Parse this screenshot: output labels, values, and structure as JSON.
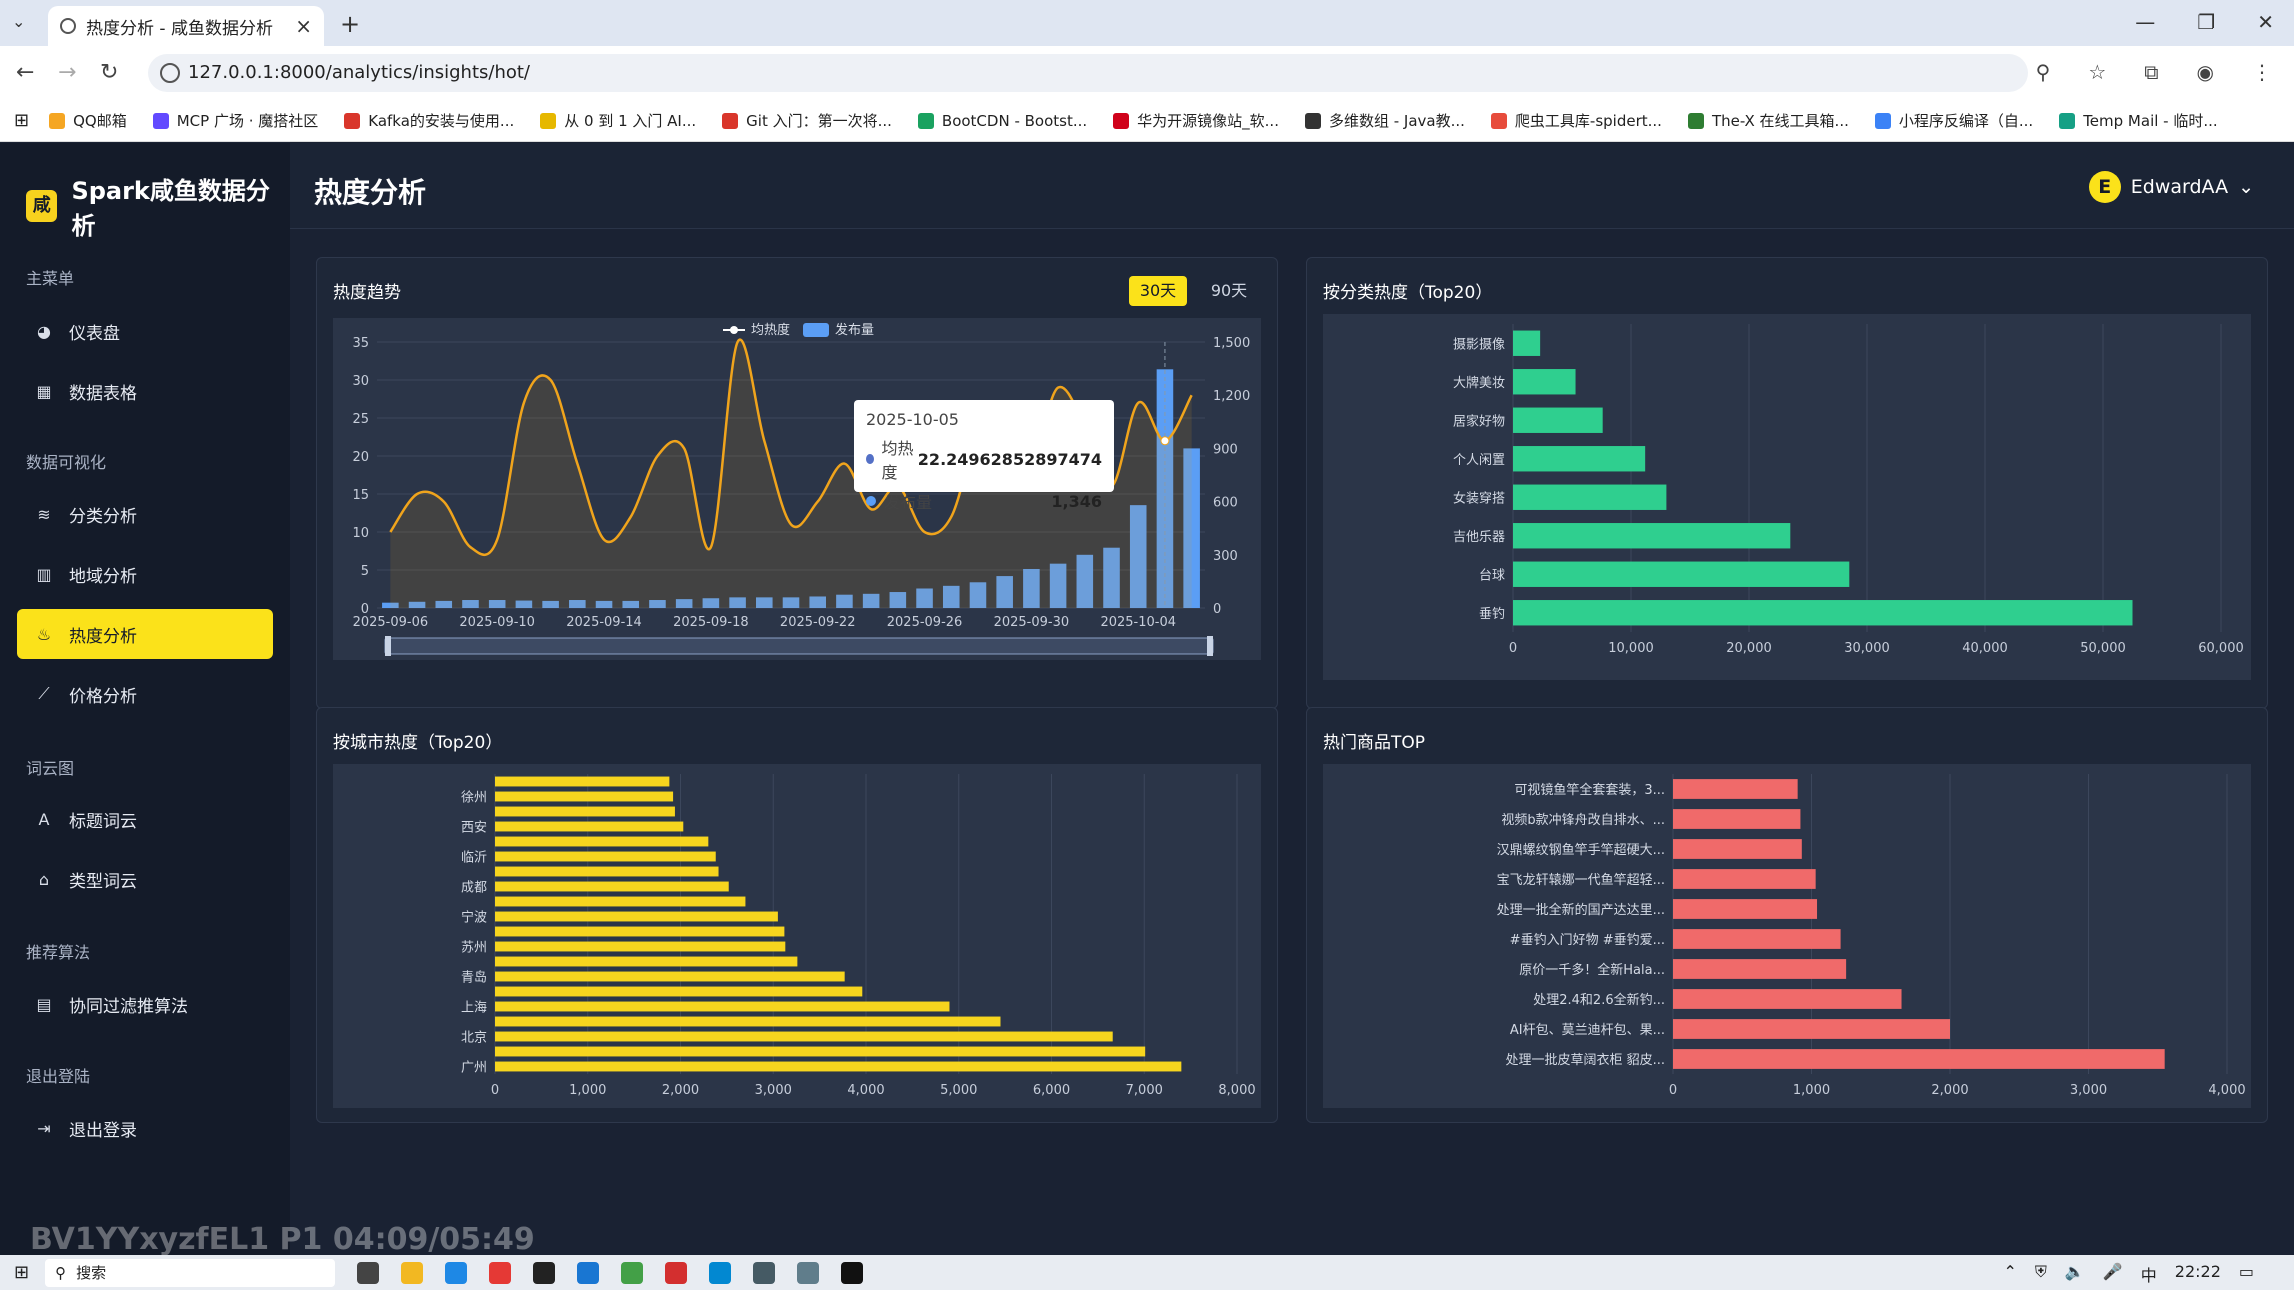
{
  "browser": {
    "tab_title": "热度分析 - 咸鱼数据分析",
    "url": "127.0.0.1:8000/analytics/insights/hot/",
    "bookmarks": [
      {
        "label": "QQ邮箱",
        "color": "#f5a623"
      },
      {
        "label": "MCP 广场 · 魔搭社区",
        "color": "#624aff"
      },
      {
        "label": "Kafka的安装与使用...",
        "color": "#d9362b"
      },
      {
        "label": "从 0 到 1 入门 AI...",
        "color": "#e6b800"
      },
      {
        "label": "Git 入门：第一次将...",
        "color": "#d9362b"
      },
      {
        "label": "BootCDN - Bootst...",
        "color": "#1aa260"
      },
      {
        "label": "华为开源镜像站_软...",
        "color": "#d0021b"
      },
      {
        "label": "多维数组 - Java教...",
        "color": "#333333"
      },
      {
        "label": "爬虫工具库-spidert...",
        "color": "#e74c3c"
      },
      {
        "label": "The-X 在线工具箱...",
        "color": "#2e7d32"
      },
      {
        "label": "小程序反编译（自...",
        "color": "#3b82f6"
      },
      {
        "label": "Temp Mail - 临时...",
        "color": "#16a085"
      }
    ]
  },
  "app": {
    "logo_icon": "咸",
    "name": "Spark咸鱼数据分析",
    "page_title": "热度分析",
    "user_initial": "E",
    "user_name": "EdwardAA"
  },
  "sidebar": {
    "sections": [
      "主菜单",
      "数据可视化",
      "词云图",
      "推荐算法",
      "退出登陆"
    ],
    "items": [
      {
        "label": "仪表盘",
        "icon": "dashboard-icon",
        "glyph": "◕"
      },
      {
        "label": "数据表格",
        "icon": "table-icon",
        "glyph": "▦"
      },
      {
        "label": "分类分析",
        "icon": "layers-icon",
        "glyph": "≋"
      },
      {
        "label": "地域分析",
        "icon": "bar-chart-icon",
        "glyph": "▥"
      },
      {
        "label": "热度分析",
        "icon": "fire-icon",
        "glyph": "♨"
      },
      {
        "label": "价格分析",
        "icon": "line-chart-icon",
        "glyph": "⟋"
      },
      {
        "label": "标题词云",
        "icon": "font-icon",
        "glyph": "A"
      },
      {
        "label": "类型词云",
        "icon": "tags-icon",
        "glyph": "⌂"
      },
      {
        "label": "协同过滤推算法",
        "icon": "file-icon",
        "glyph": "▤"
      },
      {
        "label": "退出登录",
        "icon": "logout-icon",
        "glyph": "⇥"
      }
    ]
  },
  "panels": {
    "trend": "热度趋势",
    "category": "按分类热度（Top20）",
    "city": "按城市热度（Top20）",
    "hot": "热门商品TOP",
    "range30": "30天",
    "range90": "90天"
  },
  "tooltip": {
    "date": "2025-10-05",
    "label_avg": "均热度",
    "value_avg": "22.24962852897474",
    "label_count": "发布量",
    "value_count": "1,346"
  },
  "taskbar": {
    "search": "搜索",
    "ime": "中",
    "time": "22:22"
  },
  "watermark": "BV1YYxyzfEL1 P1 04:09/05:49",
  "colors": {
    "accent": "#fbe21a",
    "trend_line": "#f0a41c",
    "trend_bar": "#5b9ef5",
    "category": "#2fcf8f",
    "city": "#f7d51e",
    "hot": "#f06a6a"
  },
  "chart_data": [
    {
      "type": "bar+line",
      "legend": [
        "均热度",
        "发布量"
      ],
      "x": [
        "2025-09-06",
        "2025-09-07",
        "2025-09-08",
        "2025-09-09",
        "2025-09-10",
        "2025-09-11",
        "2025-09-12",
        "2025-09-13",
        "2025-09-14",
        "2025-09-15",
        "2025-09-16",
        "2025-09-17",
        "2025-09-18",
        "2025-09-19",
        "2025-09-20",
        "2025-09-21",
        "2025-09-22",
        "2025-09-23",
        "2025-09-24",
        "2025-09-25",
        "2025-09-26",
        "2025-09-27",
        "2025-09-28",
        "2025-09-29",
        "2025-09-30",
        "2025-10-01",
        "2025-10-02",
        "2025-10-03",
        "2025-10-04",
        "2025-10-05",
        "2025-10-06"
      ],
      "xticks": [
        "2025-09-06",
        "2025-09-10",
        "2025-09-14",
        "2025-09-18",
        "2025-09-22",
        "2025-09-26",
        "2025-09-30",
        "2025-10-04"
      ],
      "series": [
        {
          "name": "均热度",
          "axis": "left",
          "values": [
            10,
            15,
            14,
            8,
            9,
            27,
            30,
            19,
            9,
            12,
            20,
            21,
            8,
            35,
            22,
            11,
            14,
            19,
            13,
            16,
            10,
            12,
            23,
            26,
            20,
            29,
            24,
            16,
            27,
            22,
            28
          ]
        },
        {
          "name": "发布量",
          "axis": "right",
          "values": [
            30,
            35,
            40,
            45,
            45,
            42,
            40,
            45,
            40,
            40,
            45,
            50,
            55,
            60,
            60,
            60,
            65,
            75,
            80,
            90,
            110,
            125,
            145,
            180,
            220,
            250,
            300,
            340,
            580,
            1346,
            900
          ]
        }
      ],
      "ylim_left": [
        0,
        35
      ],
      "yticks_left": [
        0,
        5,
        10,
        15,
        20,
        25,
        30,
        35
      ],
      "ylim_right": [
        0,
        1500
      ],
      "yticks_right": [
        0,
        300,
        600,
        900,
        1200,
        1500
      ]
    },
    {
      "type": "bar",
      "orientation": "horizontal",
      "categories": [
        "摄影摄像",
        "大牌美妆",
        "居家好物",
        "个人闲置",
        "女装穿搭",
        "吉他乐器",
        "台球",
        "垂钓"
      ],
      "values": [
        2300,
        5300,
        7600,
        11200,
        13000,
        23500,
        28500,
        52500
      ],
      "xlim": [
        0,
        60000
      ],
      "xticks": [
        0,
        10000,
        20000,
        30000,
        40000,
        50000,
        60000
      ]
    },
    {
      "type": "bar",
      "orientation": "horizontal",
      "categories": [
        "",
        "徐州",
        "",
        "西安",
        "",
        "临沂",
        "",
        "成都",
        "",
        "宁波",
        "",
        "苏州",
        "",
        "青岛",
        "",
        "上海",
        "",
        "北京",
        "",
        "广州"
      ],
      "values": [
        1880,
        1920,
        1940,
        2030,
        2300,
        2380,
        2410,
        2520,
        2700,
        3050,
        3120,
        3130,
        3260,
        3770,
        3960,
        4900,
        5450,
        6660,
        7010,
        7400
      ],
      "xlim": [
        0,
        8000
      ],
      "xticks": [
        0,
        1000,
        2000,
        3000,
        4000,
        5000,
        6000,
        7000,
        8000
      ]
    },
    {
      "type": "bar",
      "orientation": "horizontal",
      "categories": [
        "可视镜鱼竿全套套装，3...",
        "视频b款冲锋舟改自排水、...",
        "汉鼎螺纹钢鱼竿手竿超硬大...",
        "宝飞龙轩辕娜一代鱼竿超轻...",
        "处理一批全新的国产达达里...",
        "#垂钓入门好物 #垂钓爱...",
        "原价一千多！全新Hala...",
        "处理2.4和2.6全新钓...",
        "AI杆包、莫兰迪杆包、果...",
        "处理一批皮草阔衣柜 貂皮..."
      ],
      "values": [
        900,
        920,
        930,
        1030,
        1040,
        1210,
        1250,
        1650,
        2000,
        3550
      ],
      "xlim": [
        0,
        4000
      ],
      "xticks": [
        0,
        1000,
        2000,
        3000,
        4000
      ]
    }
  ]
}
